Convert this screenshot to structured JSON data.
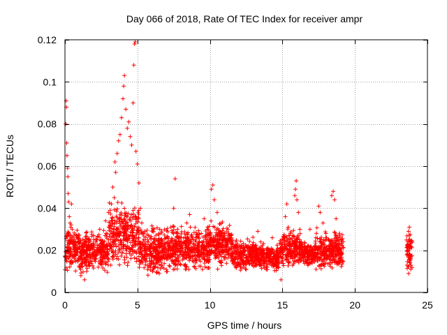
{
  "chart_data": {
    "type": "scatter",
    "title": "Day 066 of 2018, Rate Of TEC Index for receiver ampr",
    "xlabel": "GPS time / hours",
    "ylabel": "ROTI / TECUs",
    "xlim": [
      0,
      25
    ],
    "ylim": [
      0,
      0.12
    ],
    "xticks": [
      0,
      5,
      10,
      15,
      20,
      25
    ],
    "xtick_labels": [
      "0",
      "5",
      "10",
      "15",
      "20",
      "25"
    ],
    "yticks": [
      0,
      0.02,
      0.04,
      0.06,
      0.08,
      0.1,
      0.12
    ],
    "ytick_labels": [
      "0",
      "0.02",
      "0.04",
      "0.06",
      "0.08",
      "0.1",
      "0.12"
    ],
    "grid": true,
    "marker": "plus",
    "series": [
      {
        "name": "ROTI",
        "color": "#ff0000",
        "points": [
          [
            0.02,
            0.017
          ],
          [
            0.05,
            0.08
          ],
          [
            0.08,
            0.091
          ],
          [
            0.1,
            0.088
          ],
          [
            0.12,
            0.071
          ],
          [
            0.14,
            0.065
          ],
          [
            0.18,
            0.059
          ],
          [
            0.2,
            0.055
          ],
          [
            0.22,
            0.047
          ],
          [
            0.25,
            0.043
          ],
          [
            0.3,
            0.036
          ],
          [
            0.35,
            0.033
          ],
          [
            0.4,
            0.031
          ],
          [
            0.45,
            0.042
          ],
          [
            0.5,
            0.026
          ],
          [
            0.6,
            0.024
          ],
          [
            0.7,
            0.021
          ],
          [
            0.8,
            0.019
          ],
          [
            0.9,
            0.015
          ],
          [
            1.0,
            0.012
          ],
          [
            1.1,
            0.008
          ],
          [
            1.2,
            0.014
          ],
          [
            1.35,
            0.006
          ],
          [
            1.5,
            0.01
          ],
          [
            1.65,
            0.014
          ],
          [
            1.8,
            0.022
          ],
          [
            2.0,
            0.018
          ],
          [
            2.2,
            0.025
          ],
          [
            2.4,
            0.03
          ],
          [
            2.6,
            0.021
          ],
          [
            2.8,
            0.034
          ],
          [
            3.0,
            0.038
          ],
          [
            3.1,
            0.032
          ],
          [
            3.2,
            0.042
          ],
          [
            3.3,
            0.05
          ],
          [
            3.4,
            0.045
          ],
          [
            3.45,
            0.062
          ],
          [
            3.5,
            0.057
          ],
          [
            3.6,
            0.066
          ],
          [
            3.7,
            0.072
          ],
          [
            3.8,
            0.075
          ],
          [
            3.9,
            0.083
          ],
          [
            4.0,
            0.092
          ],
          [
            4.05,
            0.098
          ],
          [
            4.1,
            0.103
          ],
          [
            4.2,
            0.087
          ],
          [
            4.3,
            0.078
          ],
          [
            4.4,
            0.081
          ],
          [
            4.5,
            0.074
          ],
          [
            4.6,
            0.07
          ],
          [
            4.7,
            0.09
          ],
          [
            4.75,
            0.108
          ],
          [
            4.8,
            0.118
          ],
          [
            4.85,
            0.119
          ],
          [
            4.9,
            0.067
          ],
          [
            5.0,
            0.061
          ],
          [
            5.1,
            0.052
          ],
          [
            5.2,
            0.04
          ],
          [
            5.3,
            0.033
          ],
          [
            5.5,
            0.029
          ],
          [
            5.7,
            0.025
          ],
          [
            5.9,
            0.021
          ],
          [
            6.1,
            0.017
          ],
          [
            6.3,
            0.014
          ],
          [
            6.5,
            0.009
          ],
          [
            6.7,
            0.012
          ],
          [
            6.9,
            0.019
          ],
          [
            7.1,
            0.024
          ],
          [
            7.3,
            0.031
          ],
          [
            7.5,
            0.04
          ],
          [
            7.6,
            0.054
          ],
          [
            7.8,
            0.028
          ],
          [
            8.0,
            0.022
          ],
          [
            8.2,
            0.016
          ],
          [
            8.4,
            0.033
          ],
          [
            8.6,
            0.037
          ],
          [
            8.8,
            0.026
          ],
          [
            9.0,
            0.015
          ],
          [
            9.2,
            0.02
          ],
          [
            9.4,
            0.028
          ],
          [
            9.6,
            0.035
          ],
          [
            9.8,
            0.03
          ],
          [
            10.0,
            0.027
          ],
          [
            10.1,
            0.049
          ],
          [
            10.2,
            0.051
          ],
          [
            10.3,
            0.044
          ],
          [
            10.5,
            0.038
          ],
          [
            10.7,
            0.029
          ],
          [
            10.9,
            0.022
          ],
          [
            11.1,
            0.018
          ],
          [
            11.3,
            0.025
          ],
          [
            11.5,
            0.021
          ],
          [
            11.7,
            0.016
          ],
          [
            11.9,
            0.023
          ],
          [
            12.1,
            0.013
          ],
          [
            12.3,
            0.019
          ],
          [
            12.5,
            0.011
          ],
          [
            12.7,
            0.017
          ],
          [
            12.9,
            0.021
          ],
          [
            13.1,
            0.014
          ],
          [
            13.3,
            0.029
          ],
          [
            13.5,
            0.024
          ],
          [
            13.7,
            0.018
          ],
          [
            13.9,
            0.015
          ],
          [
            14.1,
            0.02
          ],
          [
            14.3,
            0.026
          ],
          [
            14.5,
            0.017
          ],
          [
            14.7,
            0.012
          ],
          [
            14.9,
            0.006
          ],
          [
            15.0,
            0.022
          ],
          [
            15.1,
            0.025
          ],
          [
            15.2,
            0.036
          ],
          [
            15.3,
            0.042
          ],
          [
            15.4,
            0.031
          ],
          [
            15.5,
            0.027
          ],
          [
            15.6,
            0.02
          ],
          [
            15.7,
            0.016
          ],
          [
            15.8,
            0.023
          ],
          [
            15.85,
            0.046
          ],
          [
            15.9,
            0.049
          ],
          [
            15.95,
            0.053
          ],
          [
            16.0,
            0.044
          ],
          [
            16.1,
            0.038
          ],
          [
            16.2,
            0.03
          ],
          [
            16.3,
            0.024
          ],
          [
            16.5,
            0.019
          ],
          [
            16.7,
            0.014
          ],
          [
            16.9,
            0.03
          ],
          [
            17.1,
            0.02
          ],
          [
            17.3,
            0.026
          ],
          [
            17.5,
            0.041
          ],
          [
            17.6,
            0.038
          ],
          [
            17.8,
            0.033
          ],
          [
            18.0,
            0.028
          ],
          [
            18.2,
            0.022
          ],
          [
            18.4,
            0.046
          ],
          [
            18.5,
            0.048
          ],
          [
            18.6,
            0.044
          ],
          [
            18.7,
            0.035
          ],
          [
            18.8,
            0.026
          ],
          [
            18.9,
            0.019
          ],
          [
            19.0,
            0.015
          ],
          [
            19.1,
            0.024
          ],
          [
            23.6,
            0.02
          ],
          [
            23.65,
            0.024
          ],
          [
            23.7,
            0.029
          ],
          [
            23.75,
            0.031
          ],
          [
            23.8,
            0.018
          ],
          [
            23.85,
            0.011
          ],
          [
            23.7,
            0.009
          ],
          [
            23.8,
            0.015
          ]
        ]
      }
    ],
    "cloud_bands": [
      {
        "x0": 0.0,
        "x1": 1.0,
        "ymin": 0.008,
        "ymax": 0.034
      },
      {
        "x0": 1.0,
        "x1": 3.0,
        "ymin": 0.007,
        "ymax": 0.032
      },
      {
        "x0": 3.0,
        "x1": 5.1,
        "ymin": 0.009,
        "ymax": 0.046
      },
      {
        "x0": 5.1,
        "x1": 7.0,
        "ymin": 0.006,
        "ymax": 0.034
      },
      {
        "x0": 7.0,
        "x1": 10.0,
        "ymin": 0.008,
        "ymax": 0.034
      },
      {
        "x0": 10.0,
        "x1": 11.5,
        "ymin": 0.01,
        "ymax": 0.036
      },
      {
        "x0": 11.5,
        "x1": 13.2,
        "ymin": 0.009,
        "ymax": 0.027
      },
      {
        "x0": 13.2,
        "x1": 14.8,
        "ymin": 0.009,
        "ymax": 0.024
      },
      {
        "x0": 14.8,
        "x1": 16.3,
        "ymin": 0.01,
        "ymax": 0.032
      },
      {
        "x0": 16.3,
        "x1": 17.3,
        "ymin": 0.011,
        "ymax": 0.026
      },
      {
        "x0": 17.3,
        "x1": 19.2,
        "ymin": 0.008,
        "ymax": 0.032
      },
      {
        "x0": 23.55,
        "x1": 23.95,
        "ymin": 0.009,
        "ymax": 0.03
      }
    ]
  }
}
